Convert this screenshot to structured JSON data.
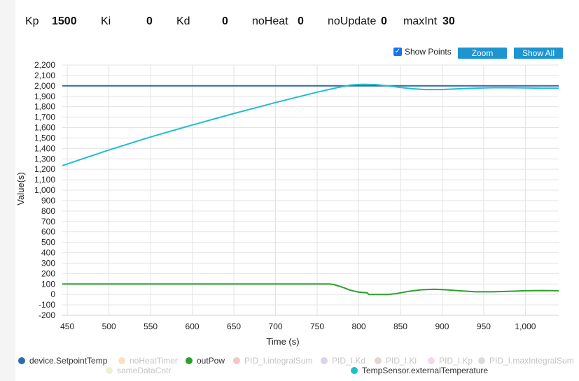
{
  "params": [
    {
      "label": "Kp",
      "value": "1500"
    },
    {
      "label": "Ki",
      "value": "0"
    },
    {
      "label": "Kd",
      "value": "0"
    },
    {
      "label": "noHeat",
      "value": "0"
    },
    {
      "label": "noUpdate",
      "value": "0"
    },
    {
      "label": "maxInt",
      "value": "30"
    }
  ],
  "controls": {
    "show_points_label": "Show Points",
    "show_points_checked": true,
    "zoom_label": "Zoom",
    "show_all_label": "Show All"
  },
  "colors": {
    "setpoint": "#2b6cb0",
    "outpow": "#2ca02c",
    "external_temp": "#1fbecf",
    "button": "#1e95d0"
  },
  "legend": [
    {
      "label": "device.SetpointTemp",
      "color": "#2b6cb0",
      "active": true
    },
    {
      "label": "noHeatTimer",
      "color": "#fbe1c0",
      "active": false
    },
    {
      "label": "outPow",
      "color": "#2ca02c",
      "active": true
    },
    {
      "label": "PID_I.integralSum",
      "color": "#f6c6c6",
      "active": false
    },
    {
      "label": "PID_I.Kd",
      "color": "#ddd2ee",
      "active": false
    },
    {
      "label": "PID_I.Ki",
      "color": "#e6d4d0",
      "active": false
    },
    {
      "label": "PID_I.Kp",
      "color": "#f6d6ec",
      "active": false
    },
    {
      "label": "PID_I.maxIntegralSum",
      "color": "#dcdcdc",
      "active": false
    },
    {
      "label": "sameDataCntr",
      "color": "#eef1cf",
      "active": false
    },
    {
      "label": "TempSensor.externalTemperature",
      "color": "#1fbecf",
      "active": true
    }
  ],
  "chart_data": {
    "type": "line",
    "xlabel": "Time (s)",
    "ylabel": "Value(s)",
    "xlim": [
      444,
      1040
    ],
    "ylim": [
      -200,
      2200
    ],
    "x_ticks": [
      450,
      500,
      550,
      600,
      650,
      700,
      750,
      800,
      850,
      900,
      950,
      1000
    ],
    "x_tick_labels": [
      "450",
      "500",
      "550",
      "600",
      "650",
      "700",
      "750",
      "800",
      "850",
      "900",
      "950",
      "1,000"
    ],
    "y_ticks": [
      -200,
      -100,
      0,
      100,
      200,
      300,
      400,
      500,
      600,
      700,
      800,
      900,
      1000,
      1100,
      1200,
      1300,
      1400,
      1500,
      1600,
      1700,
      1800,
      1900,
      2000,
      2100,
      2200
    ],
    "y_tick_labels": [
      "-200",
      "-100",
      "0",
      "100",
      "200",
      "300",
      "400",
      "500",
      "600",
      "700",
      "800",
      "900",
      "1,000",
      "1,100",
      "1,200",
      "1,300",
      "1,400",
      "1,500",
      "1,600",
      "1,700",
      "1,800",
      "1,900",
      "2,000",
      "2,100",
      "2,200"
    ],
    "grid": true,
    "legend_position": "bottom",
    "series": [
      {
        "name": "device.SetpointTemp",
        "color": "#2b6cb0",
        "points": [
          [
            444,
            2000
          ],
          [
            1040,
            2000
          ]
        ]
      },
      {
        "name": "outPow",
        "color": "#2ca02c",
        "points": [
          [
            444,
            100
          ],
          [
            765,
            100
          ],
          [
            770,
            95
          ],
          [
            780,
            70
          ],
          [
            790,
            40
          ],
          [
            800,
            22
          ],
          [
            810,
            15
          ],
          [
            812,
            0
          ],
          [
            835,
            0
          ],
          [
            845,
            8
          ],
          [
            860,
            30
          ],
          [
            875,
            45
          ],
          [
            890,
            50
          ],
          [
            905,
            45
          ],
          [
            920,
            35
          ],
          [
            940,
            25
          ],
          [
            960,
            25
          ],
          [
            980,
            30
          ],
          [
            1000,
            35
          ],
          [
            1020,
            37
          ],
          [
            1040,
            35
          ]
        ]
      },
      {
        "name": "TempSensor.externalTemperature",
        "color": "#1fbecf",
        "points": [
          [
            444,
            1235
          ],
          [
            500,
            1385
          ],
          [
            550,
            1510
          ],
          [
            600,
            1625
          ],
          [
            650,
            1735
          ],
          [
            700,
            1840
          ],
          [
            750,
            1940
          ],
          [
            775,
            1985
          ],
          [
            790,
            2008
          ],
          [
            805,
            2015
          ],
          [
            820,
            2012
          ],
          [
            835,
            2000
          ],
          [
            850,
            1985
          ],
          [
            865,
            1972
          ],
          [
            880,
            1965
          ],
          [
            900,
            1965
          ],
          [
            920,
            1972
          ],
          [
            940,
            1978
          ],
          [
            960,
            1982
          ],
          [
            980,
            1982
          ],
          [
            1000,
            1980
          ],
          [
            1020,
            1978
          ],
          [
            1040,
            1978
          ]
        ]
      }
    ]
  }
}
